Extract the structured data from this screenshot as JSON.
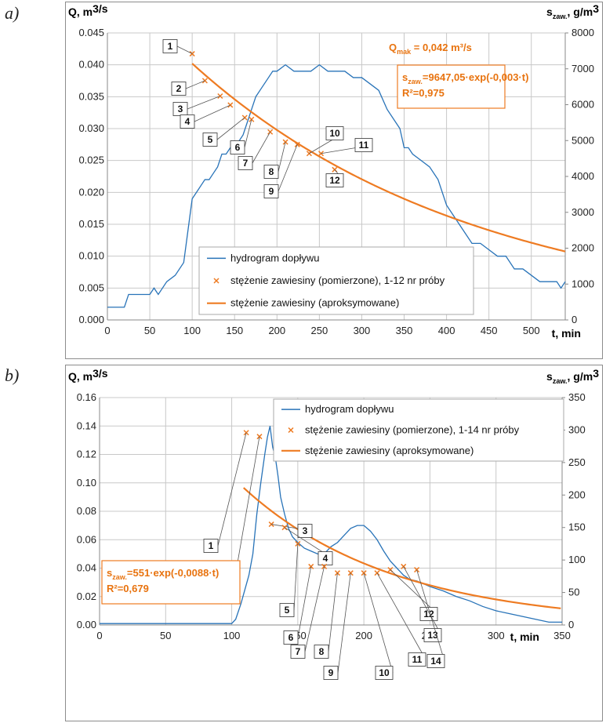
{
  "panels": {
    "a": {
      "label": "a)"
    },
    "b": {
      "label": "b)"
    }
  },
  "colors": {
    "hydrograph": "#2873b8",
    "concentration": "#ee7b22",
    "grid": "#c8c8c8"
  },
  "chart_data": [
    {
      "type": "line",
      "panel": "a",
      "y_left_label": "Q, m³/s",
      "y_right_label": "s_zaw., g/m³",
      "xlabel": "t, min",
      "xlim": [
        0,
        540
      ],
      "ylim_left": [
        0,
        0.045
      ],
      "ylim_right": [
        0,
        8000
      ],
      "x_ticks": [
        0,
        50,
        100,
        150,
        200,
        250,
        300,
        350,
        400,
        450,
        500
      ],
      "y_left_ticks": [
        "0.000",
        "0.005",
        "0.010",
        "0.015",
        "0.020",
        "0.025",
        "0.030",
        "0.035",
        "0.040",
        "0.045"
      ],
      "y_right_ticks": [
        "0",
        "1000",
        "2000",
        "3000",
        "4000",
        "5000",
        "6000",
        "7000",
        "8000"
      ],
      "grid": true,
      "legend": [
        "hydrogram dopływu",
        "stężenie zawiesiny (pomierzone), 1-12 nr próby",
        "stężenie zawiesiny (aproksymowane)"
      ],
      "annotation_qmax": "= 0,042 m³/s",
      "equation": "=9647,05·exp(-0,003·t)",
      "r2": "R²=0,975",
      "series": [
        {
          "name": "hydrogram dopływu",
          "axis": "left",
          "x": [
            0,
            20,
            25,
            50,
            55,
            60,
            70,
            80,
            90,
            95,
            100,
            105,
            110,
            115,
            120,
            125,
            130,
            135,
            140,
            145,
            150,
            155,
            160,
            165,
            170,
            175,
            180,
            185,
            190,
            195,
            200,
            210,
            220,
            230,
            240,
            250,
            260,
            270,
            280,
            290,
            300,
            310,
            320,
            330,
            340,
            345,
            350,
            355,
            360,
            370,
            380,
            390,
            400,
            410,
            420,
            430,
            440,
            450,
            460,
            470,
            480,
            490,
            500,
            510,
            520,
            530,
            535,
            540
          ],
          "y": [
            0.002,
            0.002,
            0.004,
            0.004,
            0.005,
            0.004,
            0.006,
            0.007,
            0.009,
            0.014,
            0.019,
            0.02,
            0.021,
            0.022,
            0.022,
            0.023,
            0.024,
            0.026,
            0.026,
            0.027,
            0.027,
            0.028,
            0.029,
            0.031,
            0.033,
            0.035,
            0.036,
            0.037,
            0.038,
            0.039,
            0.039,
            0.04,
            0.039,
            0.039,
            0.039,
            0.04,
            0.039,
            0.039,
            0.039,
            0.038,
            0.038,
            0.037,
            0.036,
            0.033,
            0.031,
            0.03,
            0.027,
            0.027,
            0.026,
            0.025,
            0.024,
            0.022,
            0.018,
            0.016,
            0.014,
            0.012,
            0.012,
            0.011,
            0.01,
            0.01,
            0.008,
            0.008,
            0.007,
            0.006,
            0.006,
            0.006,
            0.005,
            0.006
          ]
        },
        {
          "name": "stężenie zawiesiny (pomierzone), 1-12 nr próby",
          "axis": "right",
          "x": [
            100,
            115,
            133,
            145,
            162,
            170,
            192,
            210,
            224,
            238,
            252,
            268
          ],
          "y": [
            7420,
            6670,
            6240,
            5990,
            5640,
            5590,
            5240,
            4960,
            4890,
            4640,
            4640,
            4190
          ],
          "point_labels": [
            "1",
            "2",
            "3",
            "4",
            "5",
            "6",
            "7",
            "8",
            "9",
            "10",
            "11",
            "12"
          ]
        },
        {
          "name": "stężenie zawiesiny (aproksymowane)",
          "axis": "right",
          "fn": "exp",
          "a": 9647.05,
          "b": -0.003,
          "x_range": [
            100,
            540
          ]
        }
      ]
    },
    {
      "type": "line",
      "panel": "b",
      "y_left_label": "Q, m³/s",
      "y_right_label": "s_zaw., g/m³",
      "xlabel": "t, min",
      "xlim": [
        0,
        350
      ],
      "ylim_left": [
        0,
        0.16
      ],
      "ylim_right": [
        0,
        350
      ],
      "x_ticks": [
        0,
        50,
        100,
        150,
        200,
        250,
        300,
        350
      ],
      "y_left_ticks": [
        "0.00",
        "0.02",
        "0.04",
        "0.06",
        "0.08",
        "0.10",
        "0.12",
        "0.14",
        "0.16"
      ],
      "y_right_ticks": [
        "0",
        "50",
        "100",
        "150",
        "200",
        "250",
        "300",
        "350"
      ],
      "grid": true,
      "legend": [
        "hydrogram dopływu",
        "stężenie zawiesiny (pomierzone), 1-14 nr próby",
        "stężenie zawiesiny (aproksymowane)"
      ],
      "equation": "=551·exp(-0,0088·t)",
      "r2": "R²=0,679",
      "series": [
        {
          "name": "hydrogram dopływu",
          "axis": "left",
          "x": [
            0,
            50,
            100,
            103,
            107,
            110,
            113,
            116,
            119,
            122,
            125,
            127,
            129,
            131,
            133,
            135,
            137,
            140,
            143,
            146,
            150,
            155,
            160,
            165,
            170,
            175,
            180,
            185,
            190,
            195,
            200,
            205,
            210,
            215,
            220,
            225,
            230,
            235,
            240,
            250,
            260,
            270,
            280,
            290,
            300,
            310,
            320,
            330,
            340,
            350
          ],
          "y": [
            0.001,
            0.001,
            0.001,
            0.004,
            0.015,
            0.025,
            0.035,
            0.05,
            0.078,
            0.1,
            0.12,
            0.132,
            0.14,
            0.125,
            0.118,
            0.105,
            0.09,
            0.078,
            0.068,
            0.062,
            0.058,
            0.054,
            0.052,
            0.05,
            0.05,
            0.055,
            0.058,
            0.063,
            0.068,
            0.07,
            0.07,
            0.066,
            0.06,
            0.052,
            0.045,
            0.04,
            0.035,
            0.032,
            0.031,
            0.027,
            0.024,
            0.02,
            0.017,
            0.013,
            0.01,
            0.008,
            0.006,
            0.004,
            0.002,
            0.002
          ]
        },
        {
          "name": "stężenie zawiesiny (pomierzone), 1-14 nr próby",
          "axis": "right",
          "x": [
            111,
            121,
            130,
            140,
            150,
            160,
            170,
            180,
            190,
            200,
            210,
            220,
            230,
            240
          ],
          "y": [
            296,
            290,
            155,
            150,
            125,
            90,
            90,
            80,
            80,
            80,
            80,
            85,
            90,
            85
          ],
          "point_labels": [
            "1",
            "2",
            "3",
            "4",
            "5",
            "6",
            "7",
            "8",
            "9",
            "10",
            "11",
            "12",
            "13",
            "14"
          ]
        },
        {
          "name": "stężenie zawiesiny (aproksymowane)",
          "axis": "right",
          "fn": "exp",
          "a": 551,
          "b": -0.0088,
          "x_range": [
            109,
            350
          ]
        }
      ]
    }
  ]
}
